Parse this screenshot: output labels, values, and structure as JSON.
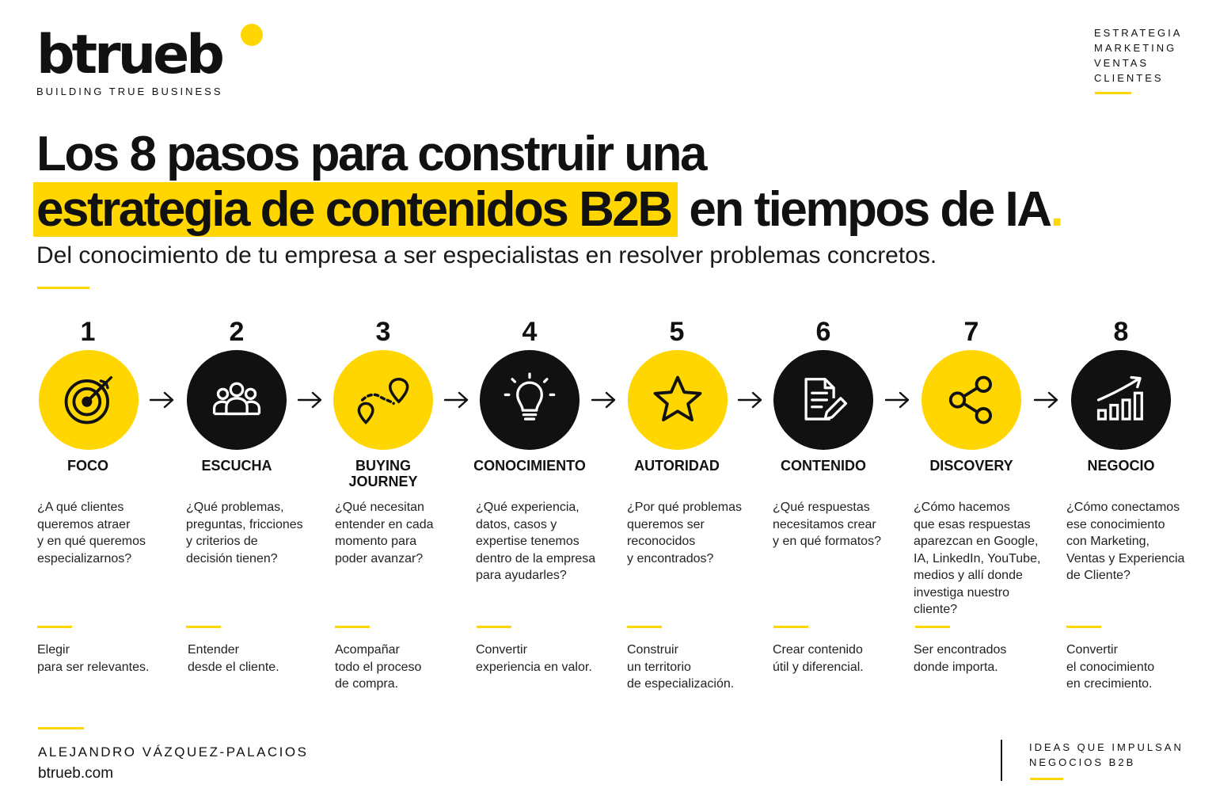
{
  "brand": {
    "logo": "btrueb",
    "tagline": "BUILDING TRUE BUSINESS"
  },
  "top_tags": [
    "ESTRATEGIA",
    "MARKETING",
    "VENTAS",
    "CLIENTES"
  ],
  "title": {
    "line1": "Los 8 pasos para construir una",
    "highlight": "estrategia de contenidos B2B",
    "line2_rest": " en tiempos de IA",
    "end_dot": "."
  },
  "subtitle": "Del conocimiento de tu empresa a ser especialistas en resolver problemas concretos.",
  "colors": {
    "accent": "#FFD600",
    "dark": "#111111",
    "background": "#FFFFFF"
  },
  "steps": [
    {
      "number": "1",
      "label": "FOCO",
      "icon": "target-icon",
      "circle": "yellow",
      "question": [
        "¿A qué clientes",
        "queremos atraer",
        "y en qué queremos",
        "especializarnos?"
      ],
      "result": [
        "Elegir",
        "para ser relevantes."
      ]
    },
    {
      "number": "2",
      "label": "ESCUCHA",
      "icon": "people-icon",
      "circle": "black",
      "question": [
        "¿Qué problemas,",
        "preguntas, fricciones",
        "y criterios de",
        "decisión tienen?"
      ],
      "result": [
        "Entender",
        "desde el cliente."
      ]
    },
    {
      "number": "3",
      "label": "BUYING JOURNEY",
      "label_lines": [
        "BUYING",
        "JOURNEY"
      ],
      "icon": "route-icon",
      "circle": "yellow",
      "question": [
        "¿Qué necesitan",
        "entender en cada",
        "momento para",
        "poder avanzar?"
      ],
      "result": [
        "Acompañar",
        "todo el proceso",
        "de compra."
      ]
    },
    {
      "number": "4",
      "label": "CONOCIMIENTO",
      "icon": "lightbulb-icon",
      "circle": "black",
      "question": [
        "¿Qué experiencia,",
        "datos, casos y",
        "expertise tenemos",
        "dentro de la empresa",
        "para ayudarles?"
      ],
      "result": [
        "Convertir",
        "experiencia en valor."
      ]
    },
    {
      "number": "5",
      "label": "AUTORIDAD",
      "icon": "star-icon",
      "circle": "yellow",
      "question": [
        "¿Por qué problemas",
        "queremos ser",
        "reconocidos",
        "y encontrados?"
      ],
      "result": [
        "Construir",
        "un territorio",
        "de especialización."
      ]
    },
    {
      "number": "6",
      "label": "CONTENIDO",
      "icon": "document-edit-icon",
      "circle": "black",
      "question": [
        "¿Qué respuestas",
        "necesitamos crear",
        "y en qué formatos?"
      ],
      "result": [
        "Crear contenido",
        "útil y diferencial."
      ]
    },
    {
      "number": "7",
      "label": "DISCOVERY",
      "icon": "share-icon",
      "circle": "yellow",
      "question": [
        "¿Cómo hacemos",
        "que esas respuestas",
        "aparezcan en Google,",
        "IA, LinkedIn, YouTube,",
        "medios y allí donde",
        "investiga nuestro",
        "cliente?"
      ],
      "result": [
        "Ser encontrados",
        "donde importa."
      ]
    },
    {
      "number": "8",
      "label": "NEGOCIO",
      "icon": "growth-chart-icon",
      "circle": "black",
      "question": [
        "¿Cómo conectamos",
        "ese conocimiento",
        "con Marketing,",
        "Ventas y Experiencia",
        "de Cliente?"
      ],
      "result": [
        "Convertir",
        "el conocimiento",
        "en crecimiento."
      ]
    }
  ],
  "footer": {
    "author": "ALEJANDRO VÁZQUEZ-PALACIOS",
    "site": "btrueb.com",
    "motto": [
      "IDEAS QUE IMPULSAN",
      "NEGOCIOS B2B"
    ]
  }
}
